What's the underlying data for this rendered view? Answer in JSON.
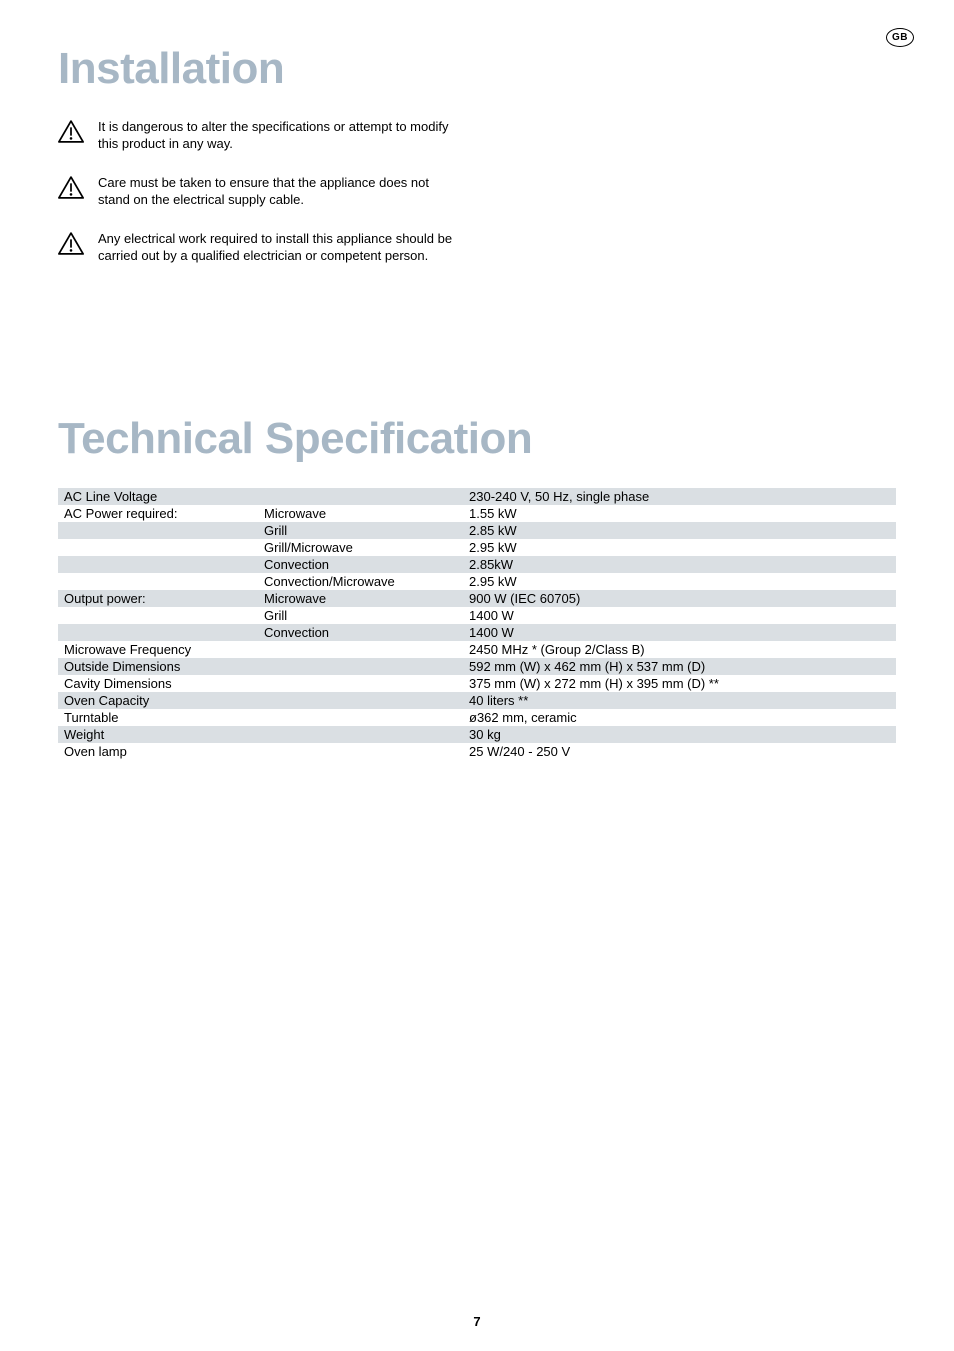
{
  "countryCode": "GB",
  "installation": {
    "title": "Installation",
    "warnings": [
      "It is dangerous to alter the specifications or attempt to modify this product in any way.",
      "Care must be taken to ensure that the appliance does not stand on the electrical supply cable.",
      "Any electrical work required to install this appliance should be carried out by a qualified electrician or competent person."
    ]
  },
  "technicalSpec": {
    "title": "Technical Specification",
    "rows": [
      {
        "shade": "gray",
        "col1": "AC Line Voltage",
        "col2": "",
        "col3": "230-240 V, 50 Hz, single phase"
      },
      {
        "shade": "white",
        "col1": "AC Power required:",
        "col2": "Microwave",
        "col3": "1.55 kW"
      },
      {
        "shade": "gray",
        "col1": "",
        "col2": "Grill",
        "col3": "2.85 kW"
      },
      {
        "shade": "white",
        "col1": "",
        "col2": "Grill/Microwave",
        "col3": "2.95 kW"
      },
      {
        "shade": "gray",
        "col1": "",
        "col2": "Convection",
        "col3": "2.85kW"
      },
      {
        "shade": "white",
        "col1": "",
        "col2": "Convection/Microwave",
        "col3": "2.95 kW"
      },
      {
        "shade": "gray",
        "col1": "Output power:",
        "col2": "Microwave",
        "col3": "900 W (IEC 60705)"
      },
      {
        "shade": "white",
        "col1": "",
        "col2": "Grill",
        "col3": "1400 W"
      },
      {
        "shade": "gray",
        "col1": "",
        "col2": "Convection",
        "col3": "1400 W"
      },
      {
        "shade": "white",
        "col1": "Microwave Frequency",
        "col2": "",
        "col3": "2450 MHz * (Group 2/Class B)"
      },
      {
        "shade": "gray",
        "col1": "Outside Dimensions",
        "col2": "",
        "col3": "592 mm (W) x 462 mm (H) x 537 mm (D)"
      },
      {
        "shade": "white",
        "col1": "Cavity Dimensions",
        "col2": "",
        "col3": "375 mm (W) x 272 mm (H) x 395 mm (D) **"
      },
      {
        "shade": "gray",
        "col1": "Oven Capacity",
        "col2": "",
        "col3": "40 liters **"
      },
      {
        "shade": "white",
        "col1": "Turntable",
        "col2": "",
        "col3": "ø362 mm, ceramic"
      },
      {
        "shade": "gray",
        "col1": "Weight",
        "col2": "",
        "col3": "30 kg"
      },
      {
        "shade": "white",
        "col1": "Oven lamp",
        "col2": "",
        "col3": "25 W/240 - 250 V"
      }
    ]
  },
  "colors": {
    "headingBlue": "#a7b7c5",
    "rowGray": "#dadfe3",
    "rowWhite": "#ffffff",
    "text": "#000000"
  },
  "typography": {
    "headingFontSize": 44,
    "bodyFontSize": 13,
    "lineHeight": 17
  },
  "pageNumber": "7"
}
